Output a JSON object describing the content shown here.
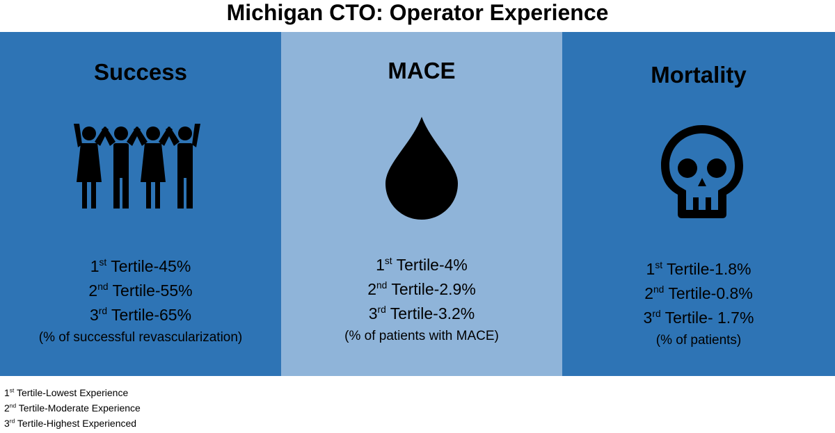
{
  "title": "Michigan CTO: Operator Experience",
  "colors": {
    "panel_dark": "#2e74b5",
    "panel_light": "#8fb4d9",
    "icon": "#000000"
  },
  "panels": [
    {
      "heading": "Success",
      "icon": "people-group-icon",
      "stats": [
        {
          "ord_num": "1",
          "ord_sup": "st",
          "text": " Tertile-45%"
        },
        {
          "ord_num": "2",
          "ord_sup": "nd",
          "text": " Tertile-55%"
        },
        {
          "ord_num": "3",
          "ord_sup": "rd",
          "text": " Tertile-65%"
        }
      ],
      "note": "(% of successful revascularization)"
    },
    {
      "heading": "MACE",
      "icon": "blood-drop-icon",
      "stats": [
        {
          "ord_num": "1",
          "ord_sup": "st",
          "text": " Tertile-4%"
        },
        {
          "ord_num": "2",
          "ord_sup": "nd",
          "text": " Tertile-2.9%"
        },
        {
          "ord_num": "3",
          "ord_sup": "rd",
          "text": " Tertile-3.2%"
        }
      ],
      "note": "(% of patients with MACE)"
    },
    {
      "heading": "Mortality",
      "icon": "skull-icon",
      "stats": [
        {
          "ord_num": "1",
          "ord_sup": "st",
          "text": " Tertile-1.8%"
        },
        {
          "ord_num": "2",
          "ord_sup": "nd",
          "text": " Tertile-0.8%"
        },
        {
          "ord_num": "3",
          "ord_sup": "rd",
          "text": " Tertile- 1.7%"
        }
      ],
      "note": "(% of patients)"
    }
  ],
  "legend": [
    {
      "ord_num": "1",
      "ord_sup": "st",
      "text": " Tertile-Lowest Experience"
    },
    {
      "ord_num": "2",
      "ord_sup": "nd",
      "text": " Tertile-Moderate Experience"
    },
    {
      "ord_num": "3",
      "ord_sup": "rd",
      "text": " Tertile-Highest Experienced"
    }
  ]
}
